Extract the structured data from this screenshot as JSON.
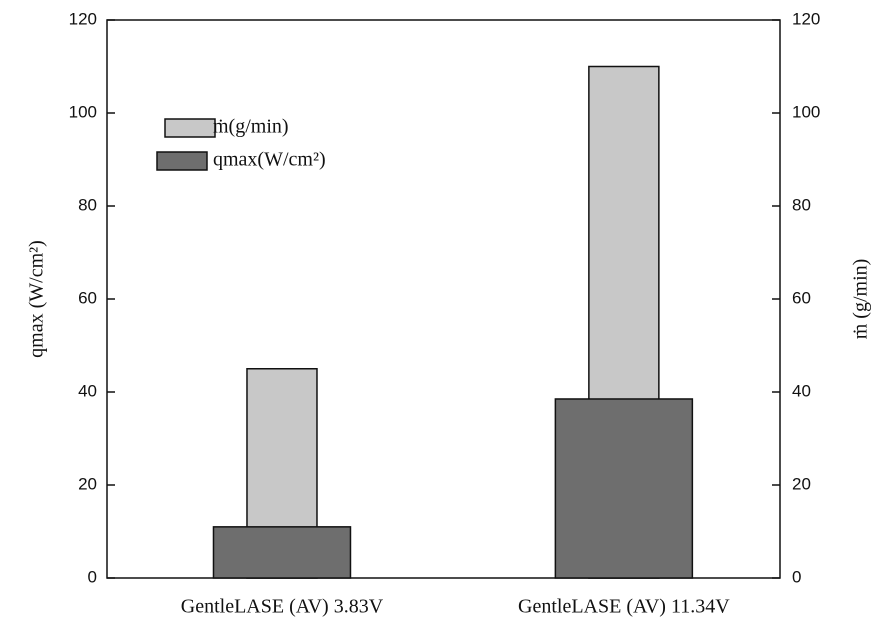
{
  "chart_data": {
    "type": "bar",
    "categories": [
      "GentleLASE (AV) 3.83V",
      "GentleLASE (AV) 11.34V"
    ],
    "series": [
      {
        "name": "ṁ(g/min)",
        "color": "#c8c8c8",
        "axis": "y2",
        "values": [
          45,
          110
        ]
      },
      {
        "name": "qmax(W/cm²)",
        "color": "#6e6e6e",
        "values": [
          11,
          38.5
        ]
      }
    ],
    "y_label": "qmax (W/cm²)",
    "y2_label": "ṁ (g/min)",
    "ylim": [
      0,
      120
    ],
    "yticks": [
      0,
      20,
      40,
      60,
      80,
      100,
      120
    ],
    "y2lim": [
      0,
      120
    ],
    "y2ticks": [
      0,
      20,
      40,
      60,
      80,
      100,
      120
    ],
    "legend": "upper left"
  }
}
